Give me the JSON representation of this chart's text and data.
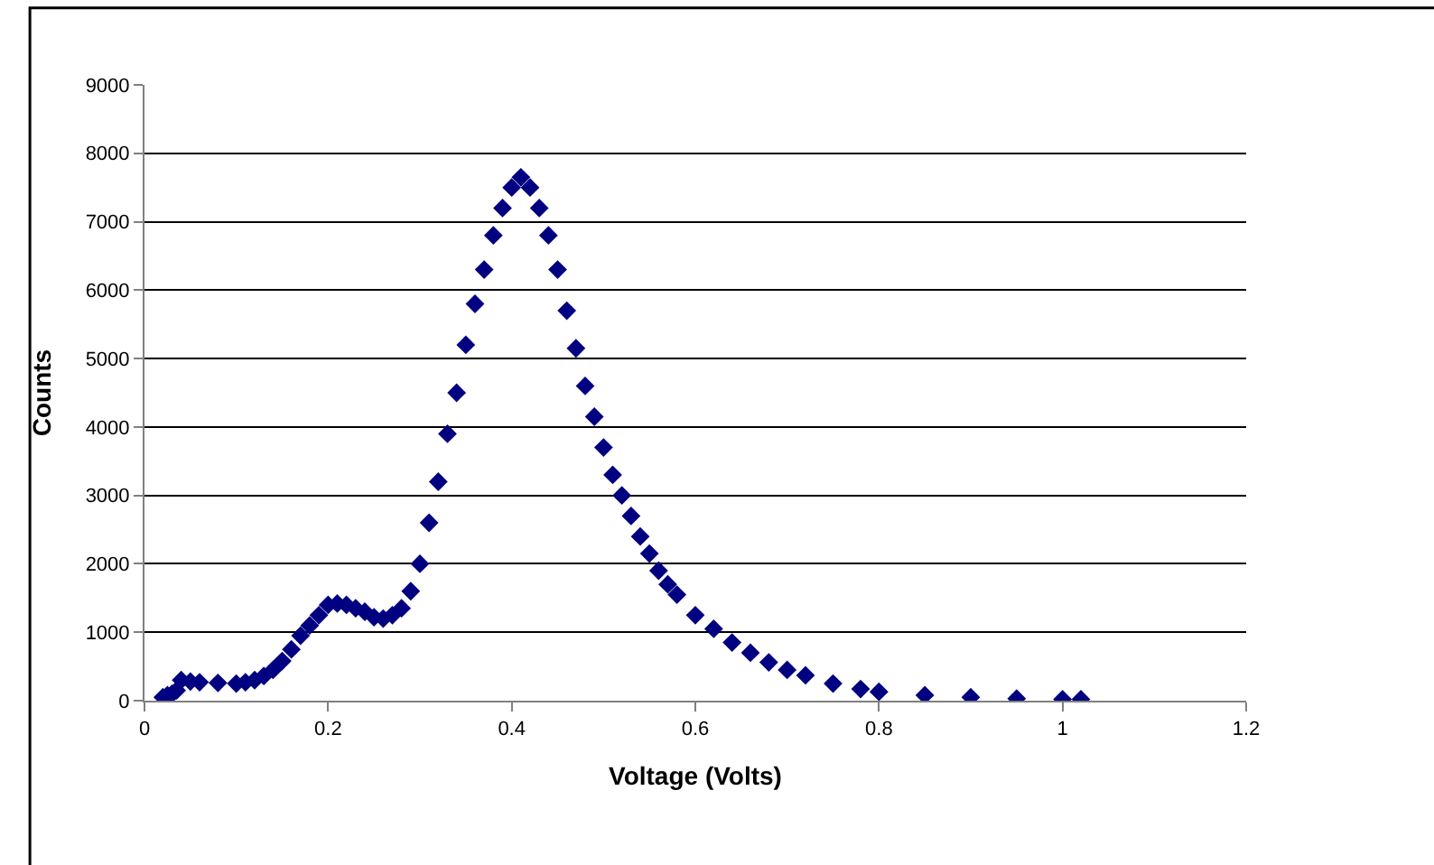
{
  "chart_data": {
    "type": "scatter",
    "xlabel": "Voltage (Volts)",
    "ylabel": "Counts",
    "x": [
      0.02,
      0.025,
      0.03,
      0.035,
      0.04,
      0.05,
      0.06,
      0.08,
      0.1,
      0.11,
      0.12,
      0.13,
      0.14,
      0.15,
      0.16,
      0.17,
      0.18,
      0.19,
      0.2,
      0.21,
      0.22,
      0.23,
      0.24,
      0.25,
      0.26,
      0.27,
      0.28,
      0.29,
      0.3,
      0.31,
      0.32,
      0.33,
      0.34,
      0.35,
      0.36,
      0.37,
      0.38,
      0.39,
      0.4,
      0.41,
      0.42,
      0.43,
      0.44,
      0.45,
      0.46,
      0.47,
      0.48,
      0.49,
      0.5,
      0.51,
      0.52,
      0.53,
      0.54,
      0.55,
      0.56,
      0.57,
      0.58,
      0.6,
      0.62,
      0.64,
      0.66,
      0.68,
      0.7,
      0.72,
      0.75,
      0.78,
      0.8,
      0.85,
      0.9,
      0.95,
      1.0,
      1.02
    ],
    "series": [
      {
        "color": "#000080",
        "values": [
          50,
          80,
          100,
          150,
          300,
          280,
          270,
          260,
          250,
          270,
          300,
          360,
          450,
          580,
          750,
          950,
          1100,
          1250,
          1400,
          1420,
          1400,
          1350,
          1300,
          1220,
          1200,
          1250,
          1350,
          1600,
          2000,
          2600,
          3200,
          3900,
          4500,
          5200,
          5800,
          6300,
          6800,
          7200,
          7500,
          7650,
          7500,
          7200,
          6800,
          6300,
          5700,
          5150,
          4600,
          4150,
          3700,
          3300,
          3000,
          2700,
          2400,
          2150,
          1900,
          1700,
          1550,
          1250,
          1050,
          850,
          700,
          560,
          450,
          370,
          250,
          170,
          130,
          80,
          50,
          30,
          20,
          20
        ]
      }
    ],
    "xlim": [
      0,
      1.2
    ],
    "xticks": [
      0,
      0.2,
      0.4,
      0.6,
      0.8,
      1,
      1.2
    ],
    "ylim": [
      0,
      9000
    ],
    "yticks": [
      0,
      1000,
      2000,
      3000,
      4000,
      5000,
      6000,
      7000,
      8000,
      9000
    ],
    "grid": "y",
    "marker": "diamond"
  }
}
